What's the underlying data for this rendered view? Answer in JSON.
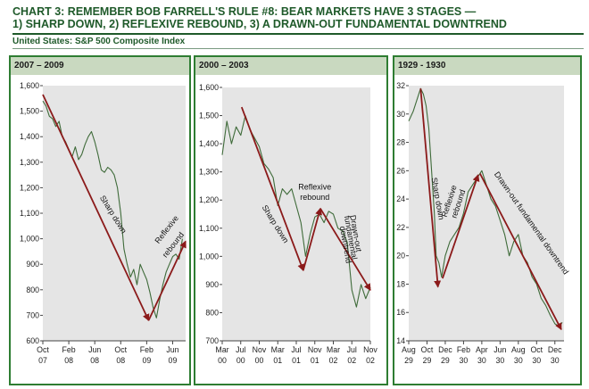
{
  "header": {
    "title_line1": "CHART 3: REMEMBER BOB FARRELL'S RULE #8: BEAR MARKETS HAVE 3 STAGES —",
    "title_line2": "1) SHARP DOWN, 2) REFLEXIVE REBOUND, 3) A DRAWN-OUT FUNDAMENTAL DOWNTREND",
    "subtitle": "United States: S&P 500 Composite Index"
  },
  "colors": {
    "title": "#1f5a2a",
    "panel_border": "#2e7d32",
    "panel_header": "#c9d9c0",
    "plot_bg": "#e5e5e5",
    "series": "#3f6b3a",
    "arrow": "#8b1a1a"
  },
  "chart_data": [
    {
      "type": "line",
      "panel_title": "2007 – 2009",
      "ylim": [
        600,
        1600
      ],
      "yticks": [
        600,
        700,
        800,
        900,
        1000,
        1100,
        1200,
        1300,
        1400,
        1500,
        1600
      ],
      "ytick_labels": [
        "600",
        "700",
        "800",
        "900",
        "1,000",
        "1,100",
        "1,200",
        "1,300",
        "1,400",
        "1,500",
        "1,600"
      ],
      "xlim": [
        0,
        22
      ],
      "xticks": [
        {
          "x": 0,
          "month": "Oct",
          "year": "07"
        },
        {
          "x": 4,
          "month": "Feb",
          "year": "08"
        },
        {
          "x": 8,
          "month": "Jun",
          "year": "08"
        },
        {
          "x": 12,
          "month": "Oct",
          "year": "08"
        },
        {
          "x": 16,
          "month": "Feb",
          "year": "09"
        },
        {
          "x": 20,
          "month": "Jun",
          "year": "09"
        }
      ],
      "series": [
        {
          "name": "S&P 500",
          "x": [
            0,
            0.5,
            1,
            1.5,
            2,
            2.5,
            3,
            3.5,
            4,
            4.5,
            5,
            5.5,
            6,
            6.5,
            7,
            7.5,
            8,
            8.5,
            9,
            9.5,
            10,
            10.5,
            11,
            11.5,
            12,
            12.5,
            13,
            13.5,
            14,
            14.5,
            15,
            15.5,
            16,
            16.5,
            17,
            17.5,
            18,
            18.5,
            19,
            19.5,
            20,
            20.5,
            21,
            21.5
          ],
          "y": [
            1540,
            1520,
            1480,
            1470,
            1440,
            1460,
            1400,
            1380,
            1350,
            1320,
            1360,
            1310,
            1330,
            1370,
            1400,
            1420,
            1380,
            1330,
            1270,
            1260,
            1280,
            1270,
            1250,
            1200,
            1100,
            960,
            900,
            850,
            880,
            820,
            900,
            870,
            840,
            790,
            730,
            690,
            760,
            820,
            870,
            900,
            930,
            940,
            920,
            1000
          ]
        }
      ],
      "arrows": [
        {
          "from": [
            0,
            1565
          ],
          "to": [
            16.3,
            680
          ]
        },
        {
          "from": [
            16.3,
            680
          ],
          "to": [
            22,
            990
          ]
        }
      ],
      "annotations": [
        {
          "text": "Sharp down",
          "at": [
            10.5,
            1090
          ],
          "angle": 58
        },
        {
          "text": "Reflexive",
          "at": [
            19.4,
            1030
          ],
          "angle": -52
        },
        {
          "text": "rebound",
          "at": [
            20.4,
            970
          ],
          "angle": -52
        }
      ]
    },
    {
      "type": "line",
      "panel_title": "2000 – 2003",
      "ylim": [
        700,
        1600
      ],
      "yticks": [
        700,
        800,
        900,
        1000,
        1100,
        1200,
        1300,
        1400,
        1500,
        1600
      ],
      "ytick_labels": [
        "700",
        "800",
        "900",
        "1,000",
        "1,100",
        "1,200",
        "1,300",
        "1,400",
        "1,500",
        "1,600"
      ],
      "xlim": [
        0,
        32
      ],
      "xticks": [
        {
          "x": 0,
          "month": "Mar",
          "year": "00"
        },
        {
          "x": 4,
          "month": "Jul",
          "year": "00"
        },
        {
          "x": 8,
          "month": "Nov",
          "year": "00"
        },
        {
          "x": 12,
          "month": "Mar",
          "year": "01"
        },
        {
          "x": 16,
          "month": "Jul",
          "year": "01"
        },
        {
          "x": 20,
          "month": "Nov",
          "year": "01"
        },
        {
          "x": 24,
          "month": "Mar",
          "year": "02"
        },
        {
          "x": 28,
          "month": "Jul",
          "year": "02"
        },
        {
          "x": 32,
          "month": "Nov",
          "year": "02"
        }
      ],
      "series": [
        {
          "name": "S&P 500",
          "x": [
            0,
            1,
            2,
            3,
            4,
            5,
            6,
            7,
            8,
            9,
            10,
            11,
            12,
            13,
            14,
            15,
            16,
            17,
            18,
            19,
            20,
            21,
            22,
            23,
            24,
            25,
            26,
            27,
            28,
            29,
            30,
            31,
            32
          ],
          "y": [
            1360,
            1480,
            1400,
            1460,
            1430,
            1500,
            1450,
            1420,
            1390,
            1330,
            1310,
            1280,
            1180,
            1240,
            1220,
            1240,
            1180,
            1120,
            1000,
            1080,
            1140,
            1150,
            1120,
            1160,
            1150,
            1100,
            1090,
            1050,
            880,
            820,
            900,
            850,
            890
          ]
        }
      ],
      "arrows": [
        {
          "from": [
            4.2,
            1530
          ],
          "to": [
            17.5,
            950
          ]
        },
        {
          "from": [
            17.5,
            950
          ],
          "to": [
            21.2,
            1170
          ]
        },
        {
          "from": [
            21.2,
            1170
          ],
          "to": [
            32,
            880
          ]
        }
      ],
      "annotations": [
        {
          "text": "Sharp down",
          "at": [
            11,
            1110
          ],
          "angle": 58
        },
        {
          "text": "Reflexive",
          "at": [
            20,
            1237
          ],
          "angle": 0
        },
        {
          "text": "rebound",
          "at": [
            20,
            1200
          ],
          "angle": 0
        },
        {
          "text": "Drawn-out",
          "at": [
            28.3,
            1080
          ],
          "angle": 80
        },
        {
          "text": "fundamental",
          "at": [
            27.2,
            1065
          ],
          "angle": 80
        },
        {
          "text": "downtrend",
          "at": [
            26.1,
            1040
          ],
          "angle": 80
        }
      ]
    },
    {
      "type": "line",
      "panel_title": "1929 - 1930",
      "ylim": [
        14,
        32
      ],
      "yticks": [
        14,
        16,
        18,
        20,
        22,
        24,
        26,
        28,
        30,
        32
      ],
      "ytick_labels": [
        "14",
        "16",
        "18",
        "20",
        "22",
        "24",
        "26",
        "28",
        "30",
        "32"
      ],
      "xlim": [
        0,
        17
      ],
      "xticks": [
        {
          "x": 0,
          "month": "Aug",
          "year": "29"
        },
        {
          "x": 2,
          "month": "Oct",
          "year": "29"
        },
        {
          "x": 4,
          "month": "Dec",
          "year": "29"
        },
        {
          "x": 6,
          "month": "Feb",
          "year": "30"
        },
        {
          "x": 8,
          "month": "Apr",
          "year": "30"
        },
        {
          "x": 10,
          "month": "Jun",
          "year": "30"
        },
        {
          "x": 12,
          "month": "Aug",
          "year": "30"
        },
        {
          "x": 14,
          "month": "Oct",
          "year": "30"
        },
        {
          "x": 16,
          "month": "Dec",
          "year": "30"
        }
      ],
      "series": [
        {
          "name": "S&P 500",
          "x": [
            0,
            0.5,
            1,
            1.3,
            1.6,
            1.9,
            2.2,
            2.5,
            2.8,
            3,
            3.3,
            3.6,
            4,
            4.5,
            5,
            5.5,
            6,
            6.5,
            7,
            7.5,
            8,
            8.5,
            9,
            9.5,
            10,
            10.5,
            11,
            11.5,
            12,
            12.5,
            13,
            13.5,
            14,
            14.5,
            15,
            15.5,
            16,
            16.5,
            16.8
          ],
          "y": [
            29.5,
            30.2,
            31.2,
            31.8,
            31.4,
            30.6,
            29,
            26,
            23,
            20,
            19.5,
            18.5,
            20,
            21,
            21.5,
            22,
            23,
            24.5,
            25,
            25.5,
            26,
            25,
            24,
            23.5,
            22.5,
            21.5,
            20,
            21,
            21.5,
            20,
            19.5,
            18.5,
            18,
            17,
            16.5,
            15.8,
            15.2,
            15,
            15.3
          ]
        }
      ],
      "arrows": [
        {
          "from": [
            1.3,
            31.8
          ],
          "to": [
            3.2,
            17.8
          ]
        },
        {
          "from": [
            3.7,
            18.4
          ],
          "to": [
            7.6,
            25.7
          ]
        },
        {
          "from": [
            7.8,
            25.8
          ],
          "to": [
            16.7,
            14.8
          ]
        }
      ],
      "annotations": [
        {
          "text": "Sharp down",
          "at": [
            2.9,
            24
          ],
          "angle": 80
        },
        {
          "text": "Reflexive",
          "at": [
            4.7,
            23.8
          ],
          "angle": -72
        },
        {
          "text": "rebound",
          "at": [
            5.7,
            23.6
          ],
          "angle": -72
        },
        {
          "text": "Drawn-out fundamental downtrend",
          "at": [
            13.2,
            22.2
          ],
          "angle": 55
        }
      ]
    }
  ]
}
